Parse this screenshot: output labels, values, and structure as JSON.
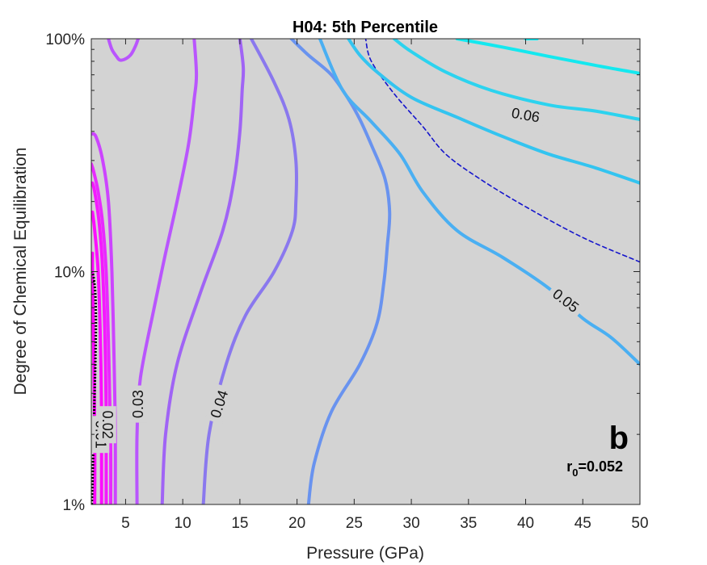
{
  "chart_data": {
    "type": "contour",
    "title": "H04: 5th Percentile",
    "xlabel": "Pressure (GPa)",
    "ylabel": "Degree of Chemical Equilibration",
    "xlim": [
      2,
      50
    ],
    "ylim": [
      1,
      100
    ],
    "yscale": "log",
    "x_ticks": [
      5,
      10,
      15,
      20,
      25,
      30,
      35,
      40,
      45,
      50
    ],
    "y_ticks": [
      {
        "value": 1,
        "label": "1%"
      },
      {
        "value": 10,
        "label": "10%"
      },
      {
        "value": 100,
        "label": "100%"
      }
    ],
    "background": "#d3d3d3",
    "panel_letter": "b",
    "annotation": {
      "base": "r",
      "subscript": "0",
      "rest": "=0.052"
    },
    "reference_level": 0.052,
    "contours": [
      {
        "level": 0.005,
        "color": "#ff00ff",
        "points": [
          [
            2.3,
            1
          ],
          [
            2.3,
            2
          ],
          [
            2.2,
            5
          ],
          [
            2.1,
            10
          ],
          [
            2.1,
            12
          ]
        ]
      },
      {
        "level": 0.01,
        "color": "#fe0dff",
        "label": "0.01",
        "label_at": [
          2.8,
          2.0
        ],
        "label_angle": 90,
        "points": [
          [
            2.9,
            1
          ],
          [
            2.9,
            1.6
          ],
          [
            2.9,
            2.5
          ],
          [
            2.8,
            5
          ],
          [
            2.6,
            10
          ],
          [
            2.3,
            15
          ],
          [
            2.1,
            18
          ]
        ]
      },
      {
        "level": 0.015,
        "color": "#f519ff",
        "points": [
          [
            3.3,
            1
          ],
          [
            3.3,
            1.6
          ],
          [
            3.3,
            2.5
          ],
          [
            3.2,
            5
          ],
          [
            3.0,
            10
          ],
          [
            2.7,
            16
          ],
          [
            2.3,
            22
          ],
          [
            2.1,
            24
          ]
        ]
      },
      {
        "level": 0.02,
        "color": "#e82aff",
        "label": "0.02",
        "label_at": [
          3.4,
          2.2
        ],
        "label_angle": 90,
        "points": [
          [
            3.7,
            1
          ],
          [
            3.7,
            1.7
          ],
          [
            3.6,
            3
          ],
          [
            3.5,
            5
          ],
          [
            3.3,
            10
          ],
          [
            3.0,
            16
          ],
          [
            2.6,
            22
          ],
          [
            2.2,
            27
          ],
          [
            2.0,
            29
          ]
        ]
      },
      {
        "level": 0.025,
        "color": "#cc44ff",
        "points": [
          [
            4.1,
            1
          ],
          [
            4.1,
            2
          ],
          [
            4.0,
            4
          ],
          [
            3.8,
            10
          ],
          [
            3.5,
            20
          ],
          [
            3.0,
            30
          ],
          [
            2.4,
            38
          ],
          [
            2.0,
            39
          ]
        ]
      },
      {
        "level": 0.03,
        "color": "#b955fd",
        "label": "0.03",
        "label_at": [
          6.1,
          2.7
        ],
        "label_angle": -90,
        "points": [
          [
            6.0,
            1
          ],
          [
            6.0,
            2
          ],
          [
            6.3,
            3.5
          ],
          [
            7.5,
            7
          ],
          [
            8.5,
            12
          ],
          [
            9.5,
            20
          ],
          [
            10.5,
            35
          ],
          [
            11.0,
            55
          ],
          [
            11.2,
            70
          ],
          [
            11.0,
            100
          ]
        ]
      },
      {
        "level": 0.035,
        "color": "#a064f5",
        "points": [
          [
            8.2,
            1
          ],
          [
            8.5,
            2
          ],
          [
            9.5,
            4
          ],
          [
            11.5,
            8
          ],
          [
            13.5,
            15
          ],
          [
            14.5,
            25
          ],
          [
            15.0,
            40
          ],
          [
            15.2,
            60
          ],
          [
            15.3,
            75
          ],
          [
            15.0,
            100
          ]
        ]
      },
      {
        "level": 0.04,
        "color": "#8a78ee",
        "label": "0.04",
        "label_at": [
          13.2,
          2.7
        ],
        "label_angle": -72,
        "points": [
          [
            11.8,
            1
          ],
          [
            12.3,
            2
          ],
          [
            13.8,
            4
          ],
          [
            15.5,
            6.5
          ],
          [
            18,
            10
          ],
          [
            19.6,
            15
          ],
          [
            19.9,
            20
          ],
          [
            19.9,
            30
          ],
          [
            19.3,
            45
          ],
          [
            18,
            65
          ],
          [
            16,
            100
          ]
        ]
      },
      {
        "level": 0.045,
        "color": "#6993ef",
        "points": [
          [
            21,
            1
          ],
          [
            21.5,
            1.5
          ],
          [
            23,
            2.5
          ],
          [
            25.5,
            4
          ],
          [
            27,
            6
          ],
          [
            27.6,
            9
          ],
          [
            27.9,
            13
          ],
          [
            28.1,
            18
          ],
          [
            27.7,
            25
          ],
          [
            26.5,
            35
          ],
          [
            25.5,
            45
          ],
          [
            24.5,
            55
          ],
          [
            23,
            70
          ],
          [
            21,
            85
          ],
          [
            19.5,
            100
          ]
        ]
      },
      {
        "level": 0.05,
        "color": "#4aaff2",
        "label": "0.05",
        "label_at": [
          43.5,
          7.5
        ],
        "label_angle": 38,
        "points": [
          [
            50,
            4
          ],
          [
            47.5,
            5.2
          ],
          [
            45,
            6.3
          ],
          [
            42,
            8.5
          ],
          [
            38,
            11.5
          ],
          [
            34,
            15
          ],
          [
            31,
            22
          ],
          [
            29,
            32
          ],
          [
            26.5,
            44
          ],
          [
            24,
            60
          ],
          [
            22,
            100
          ]
        ]
      },
      {
        "level": 0.052,
        "color": "#1414cc",
        "dashed": true,
        "points": [
          [
            50,
            11
          ],
          [
            45,
            14
          ],
          [
            40,
            19
          ],
          [
            36,
            25
          ],
          [
            33,
            32
          ],
          [
            31,
            42
          ],
          [
            28.5,
            58
          ],
          [
            26.5,
            80
          ],
          [
            26,
            100
          ]
        ]
      },
      {
        "level": 0.055,
        "color": "#33c4f0",
        "points": [
          [
            50,
            24
          ],
          [
            46,
            28
          ],
          [
            42,
            32
          ],
          [
            38,
            38
          ],
          [
            34,
            46
          ],
          [
            30,
            56
          ],
          [
            27,
            72
          ],
          [
            25.5,
            85
          ],
          [
            24.5,
            100
          ]
        ]
      },
      {
        "level": 0.06,
        "color": "#2cd3ef",
        "label": "0.06",
        "label_at": [
          40,
          47
        ],
        "label_angle": 10,
        "points": [
          [
            50,
            45
          ],
          [
            46,
            49
          ],
          [
            42,
            52
          ],
          [
            37,
            60
          ],
          [
            33,
            72
          ],
          [
            30,
            88
          ],
          [
            28.5,
            100
          ]
        ]
      },
      {
        "level": 0.065,
        "color": "#14e8ef",
        "points": [
          [
            50,
            71
          ],
          [
            46,
            77
          ],
          [
            42,
            84
          ],
          [
            38,
            92
          ],
          [
            34,
            100
          ]
        ]
      },
      {
        "level": 0.07,
        "color": "#00f5ff",
        "points": [
          [
            41,
            100
          ],
          [
            40,
            100
          ]
        ]
      }
    ],
    "top_loop": {
      "level": 0.025,
      "color": "#b955fd",
      "points": [
        [
          3.5,
          100
        ],
        [
          3.8,
          90
        ],
        [
          4.2,
          84
        ],
        [
          4.5,
          81
        ],
        [
          5.0,
          82
        ],
        [
          5.5,
          86
        ],
        [
          5.9,
          94
        ],
        [
          6.1,
          100
        ]
      ]
    },
    "lower_bound_curve": {
      "color": "#000000",
      "dotted": true,
      "points": [
        [
          2.05,
          1
        ],
        [
          2.15,
          1.5
        ],
        [
          2.25,
          2.5
        ],
        [
          2.35,
          4
        ],
        [
          2.4,
          6
        ],
        [
          2.35,
          8
        ],
        [
          2.2,
          9.5
        ],
        [
          2.05,
          10
        ]
      ]
    }
  }
}
